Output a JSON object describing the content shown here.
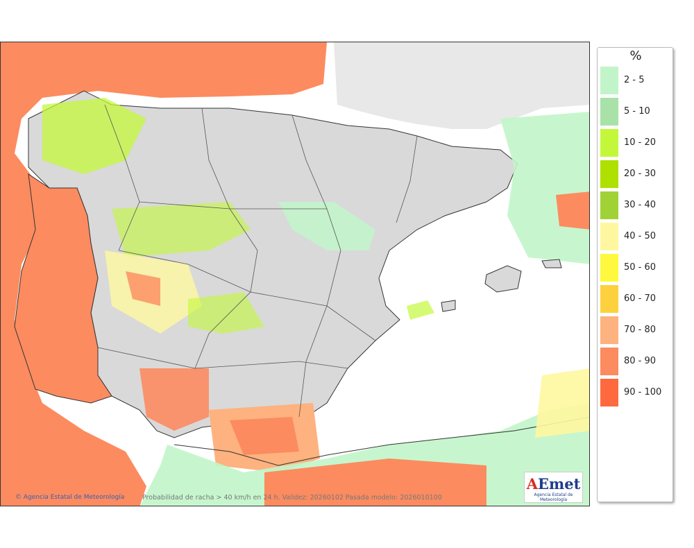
{
  "legend": {
    "title": "%",
    "items": [
      {
        "label": "2 - 5",
        "color": "#c1f5c9"
      },
      {
        "label": "5 - 10",
        "color": "#a8e2a8"
      },
      {
        "label": "10 - 20",
        "color": "#c3f83a"
      },
      {
        "label": "20 - 30",
        "color": "#aee000"
      },
      {
        "label": "30 - 40",
        "color": "#a0d236"
      },
      {
        "label": "40 - 50",
        "color": "#fef7a0"
      },
      {
        "label": "50 - 60",
        "color": "#fef83e"
      },
      {
        "label": "60 - 70",
        "color": "#fdd13d"
      },
      {
        "label": "70 - 80",
        "color": "#fdb27f"
      },
      {
        "label": "80 - 90",
        "color": "#fc8b60"
      },
      {
        "label": "90 - 100",
        "color": "#fe6a3e"
      }
    ]
  },
  "footer": {
    "agency": "Agencia Estatal de Meteorología",
    "caption": "Probabilidad de racha > 40 km/h en 24 h. Validez: 20260102 Pasada modelo: 2026010100"
  },
  "logo": {
    "mark": "AEmet",
    "subtitle": "Agencia Estatal de Meteorología"
  },
  "colors": {
    "land": "#d9d9d9",
    "sea": "#ffffff",
    "border": "#333333",
    "france": "#e8e8e8"
  }
}
